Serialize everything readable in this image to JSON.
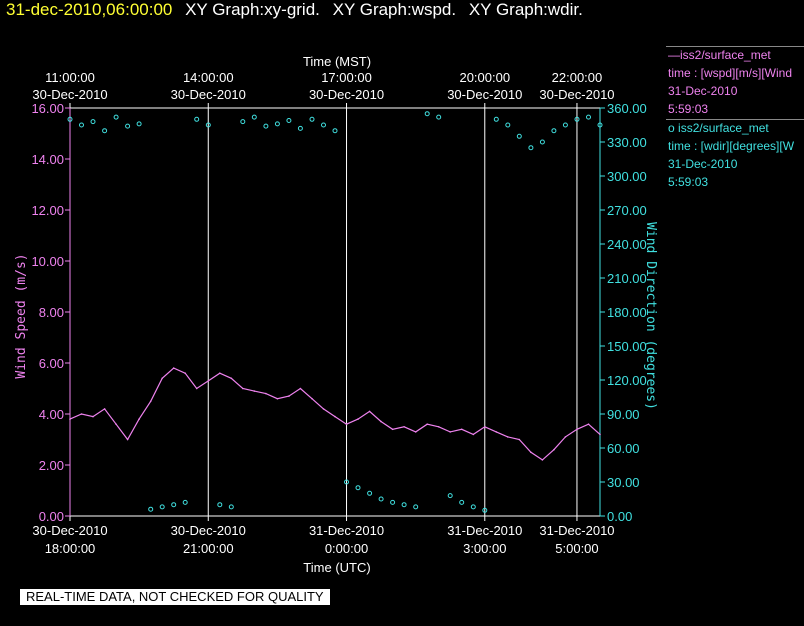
{
  "header": {
    "timestamp": "31-dec-2010,06:00:00",
    "graphs": [
      "XY Graph:xy-grid.",
      "XY Graph:wspd.",
      "XY Graph:wdir."
    ]
  },
  "legend": [
    {
      "symbol": "—",
      "source": "iss2/surface_met",
      "expr": "time : [wspd][m/s][Wind",
      "date": "31-Dec-2010",
      "time": "5:59:03",
      "color": "#ee82ee"
    },
    {
      "symbol": "o",
      "source": "iss2/surface_met",
      "expr": "time : [wdir][degrees][W",
      "date": "31-Dec-2010",
      "time": "5:59:03",
      "color": "#40e0e0"
    }
  ],
  "footer": "REAL-TIME DATA, NOT CHECKED FOR QUALITY",
  "chart_data": {
    "type": "line",
    "top_axis_title": "Time (MST)",
    "bottom_axis_title": "Time (UTC)",
    "ylabel_left": "Wind Speed (m/s)",
    "ylabel_right": "Wind Direction (degrees)",
    "x_range_utc_hours": [
      18.0,
      29.5
    ],
    "ylim_left": [
      0,
      16
    ],
    "ylim_right": [
      0,
      360
    ],
    "grid": "vertical-lines",
    "bottom_ticks": [
      {
        "hour": 18,
        "line1": "30-Dec-2010",
        "line2": "18:00:00"
      },
      {
        "hour": 21,
        "line1": "30-Dec-2010",
        "line2": "21:00:00"
      },
      {
        "hour": 24,
        "line1": "31-Dec-2010",
        "line2": "0:00:00"
      },
      {
        "hour": 27,
        "line1": "31-Dec-2010",
        "line2": "3:00:00"
      },
      {
        "hour": 29,
        "line1": "31-Dec-2010",
        "line2": "5:00:00"
      }
    ],
    "top_ticks": [
      {
        "hour": 18,
        "line1": "11:00:00",
        "line2": "30-Dec-2010"
      },
      {
        "hour": 21,
        "line1": "14:00:00",
        "line2": "30-Dec-2010"
      },
      {
        "hour": 24,
        "line1": "17:00:00",
        "line2": "30-Dec-2010"
      },
      {
        "hour": 27,
        "line1": "20:00:00",
        "line2": "30-Dec-2010"
      },
      {
        "hour": 29,
        "line1": "22:00:00",
        "line2": "30-Dec-2010"
      }
    ],
    "left_ticks": [
      "0.00",
      "2.00",
      "4.00",
      "6.00",
      "8.00",
      "10.00",
      "12.00",
      "14.00",
      "16.00"
    ],
    "right_ticks": [
      "0.00",
      "30.00",
      "60.00",
      "90.00",
      "120.00",
      "150.00",
      "180.00",
      "210.00",
      "240.00",
      "270.00",
      "300.00",
      "330.00",
      "360.00"
    ],
    "series": [
      {
        "name": "wspd",
        "mark": "line",
        "color": "#ee82ee",
        "axis": "left",
        "x": [
          18.0,
          18.25,
          18.5,
          18.75,
          19.0,
          19.25,
          19.5,
          19.75,
          20.0,
          20.25,
          20.5,
          20.75,
          21.0,
          21.25,
          21.5,
          21.75,
          22.0,
          22.25,
          22.5,
          22.75,
          23.0,
          23.25,
          23.5,
          23.75,
          24.0,
          24.25,
          24.5,
          24.75,
          25.0,
          25.25,
          25.5,
          25.75,
          26.0,
          26.25,
          26.5,
          26.75,
          27.0,
          27.25,
          27.5,
          27.75,
          28.0,
          28.25,
          28.5,
          28.75,
          29.0,
          29.25,
          29.5
        ],
        "y": [
          3.8,
          4.0,
          3.9,
          4.2,
          3.6,
          3.0,
          3.8,
          4.5,
          5.4,
          5.8,
          5.6,
          5.0,
          5.3,
          5.6,
          5.4,
          5.0,
          4.9,
          4.8,
          4.6,
          4.7,
          5.0,
          4.6,
          4.2,
          3.9,
          3.6,
          3.8,
          4.1,
          3.7,
          3.4,
          3.5,
          3.3,
          3.6,
          3.5,
          3.3,
          3.4,
          3.2,
          3.5,
          3.3,
          3.1,
          3.0,
          2.5,
          2.2,
          2.6,
          3.1,
          3.4,
          3.6,
          3.2
        ]
      },
      {
        "name": "wdir",
        "mark": "circle",
        "color": "#40e0e0",
        "axis": "right",
        "x": [
          18.0,
          18.25,
          18.5,
          18.75,
          19.0,
          19.25,
          19.5,
          19.75,
          20.0,
          20.25,
          20.5,
          20.75,
          21.0,
          21.25,
          21.5,
          21.75,
          22.0,
          22.25,
          22.5,
          22.75,
          23.0,
          23.25,
          23.5,
          23.75,
          24.0,
          24.25,
          24.5,
          24.75,
          25.0,
          25.25,
          25.5,
          25.75,
          26.0,
          26.25,
          26.5,
          26.75,
          27.0,
          27.25,
          27.5,
          27.75,
          28.0,
          28.25,
          28.5,
          28.75,
          29.0,
          29.25,
          29.5
        ],
        "y": [
          350,
          345,
          348,
          340,
          352,
          344,
          346,
          6,
          8,
          10,
          12,
          350,
          345,
          10,
          8,
          348,
          352,
          344,
          346,
          349,
          342,
          350,
          345,
          340,
          30,
          25,
          20,
          15,
          12,
          10,
          8,
          355,
          352,
          18,
          12,
          8,
          5,
          350,
          345,
          335,
          325,
          330,
          340,
          345,
          350,
          352,
          345
        ]
      }
    ]
  }
}
